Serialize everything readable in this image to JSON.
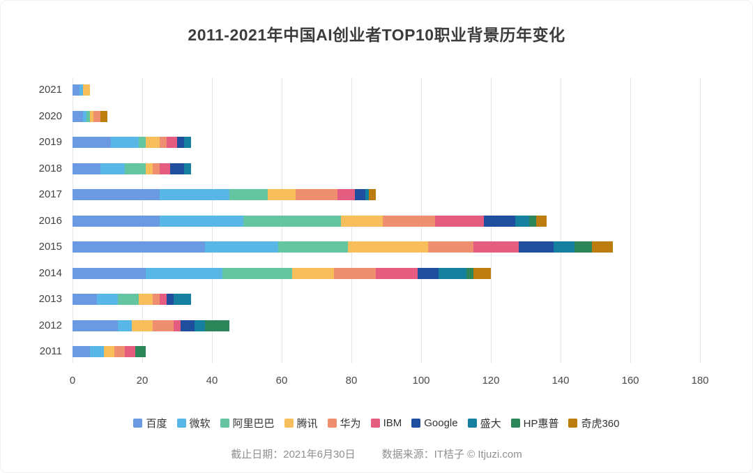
{
  "title": "2011-2021年中国AI创业者TOP10职业背景历年变化",
  "footer": {
    "date": "截止日期：2021年6月30日",
    "source": "数据来源：IT桔子 © Itjuzi.com"
  },
  "chart_data": {
    "type": "bar",
    "orientation": "horizontal",
    "stacked": true,
    "title": "2011-2021年中国AI创业者TOP10职业背景历年变化",
    "xlabel": "",
    "ylabel": "",
    "grid": true,
    "legend_position": "bottom",
    "xlim": [
      0,
      180
    ],
    "xticks": [
      0,
      20,
      40,
      60,
      80,
      100,
      120,
      140,
      160,
      180
    ],
    "categories": [
      "2021",
      "2020",
      "2019",
      "2018",
      "2017",
      "2016",
      "2015",
      "2014",
      "2013",
      "2012",
      "2011"
    ],
    "series": [
      {
        "name": "百度",
        "color": "#6A9AE1",
        "values": [
          2,
          3,
          11,
          8,
          25,
          25,
          38,
          21,
          7,
          13,
          5
        ]
      },
      {
        "name": "微软",
        "color": "#59B7E8",
        "values": [
          1,
          1,
          8,
          7,
          20,
          24,
          21,
          22,
          6,
          4,
          4
        ]
      },
      {
        "name": "阿里巴巴",
        "color": "#64C5A0",
        "values": [
          0,
          1,
          2,
          6,
          11,
          28,
          20,
          20,
          6,
          0,
          0
        ]
      },
      {
        "name": "腾讯",
        "color": "#F8BE5C",
        "values": [
          2,
          1,
          4,
          2,
          8,
          12,
          23,
          12,
          4,
          6,
          3
        ]
      },
      {
        "name": "华为",
        "color": "#EE8F70",
        "values": [
          0,
          2,
          2,
          2,
          12,
          15,
          13,
          12,
          2,
          6,
          3
        ]
      },
      {
        "name": "IBM",
        "color": "#E45C7F",
        "values": [
          0,
          0,
          3,
          3,
          5,
          14,
          13,
          12,
          2,
          2,
          3
        ]
      },
      {
        "name": "Google",
        "color": "#1F4E9E",
        "values": [
          0,
          0,
          2,
          4,
          3,
          9,
          10,
          6,
          2,
          4,
          0
        ]
      },
      {
        "name": "盛大",
        "color": "#157FA0",
        "values": [
          0,
          0,
          2,
          2,
          1,
          4,
          6,
          8,
          5,
          3,
          0
        ]
      },
      {
        "name": "HP惠普",
        "color": "#2D8659",
        "values": [
          0,
          0,
          0,
          0,
          0,
          2,
          5,
          2,
          0,
          7,
          3
        ]
      },
      {
        "name": "奇虎360",
        "color": "#BD7D0E",
        "values": [
          0,
          2,
          0,
          0,
          2,
          3,
          6,
          5,
          0,
          0,
          0
        ]
      }
    ]
  }
}
